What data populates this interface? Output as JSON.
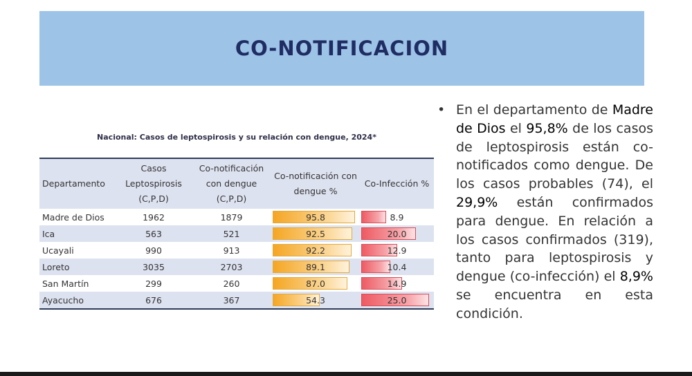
{
  "slide": {
    "title": "CO-NOTIFICACION"
  },
  "table": {
    "title": "Nacional: Casos de leptospirosis y su relación con dengue, 2024*",
    "headers": {
      "departamento": "Departamento",
      "casos_1": "Casos",
      "casos_2": "Leptospirosis",
      "casos_3": "(C,P,D)",
      "conot_1": "Co-notificación",
      "conot_2": "con dengue",
      "conot_3": "(C,P,D)",
      "pct_1": "Co-notificación con",
      "pct_2": "dengue %",
      "coinf": "Co-Infección %"
    },
    "rows": [
      {
        "departamento": "Madre de Dios",
        "casos": "1962",
        "conot": "1879",
        "pct": "95.8",
        "coinf": "8.9"
      },
      {
        "departamento": "Ica",
        "casos": "563",
        "conot": "521",
        "pct": "92.5",
        "coinf": "20.0"
      },
      {
        "departamento": "Ucayali",
        "casos": "990",
        "conot": "913",
        "pct": "92.2",
        "coinf": "12.9"
      },
      {
        "departamento": "Loreto",
        "casos": "3035",
        "conot": "2703",
        "pct": "89.1",
        "coinf": "10.4"
      },
      {
        "departamento": "San Martín",
        "casos": "299",
        "conot": "260",
        "pct": "87.0",
        "coinf": "14.9"
      },
      {
        "departamento": "Ayacucho",
        "casos": "676",
        "conot": "367",
        "pct": "54.3",
        "coinf": "25.0"
      }
    ],
    "colors": {
      "pct_bar": "#f5a623",
      "coinf_bar": "#ee5a63",
      "stripe": "#dde2f0"
    }
  },
  "bullet": {
    "p1": "En el departamento de ",
    "h1": "Madre de Dios",
    "p2": " el ",
    "h2": "95,8%",
    "p3": " de los casos de leptospirosis están co-notificados como dengue. De los casos probables (74), el ",
    "h3": "29,9%",
    "p4": " están confirmados para dengue. En relación a los casos confirmados (319), tanto para leptospirosis y dengue (co-infección) el ",
    "h4": "8,9%",
    "p5": " se encuentra en esta condición."
  }
}
